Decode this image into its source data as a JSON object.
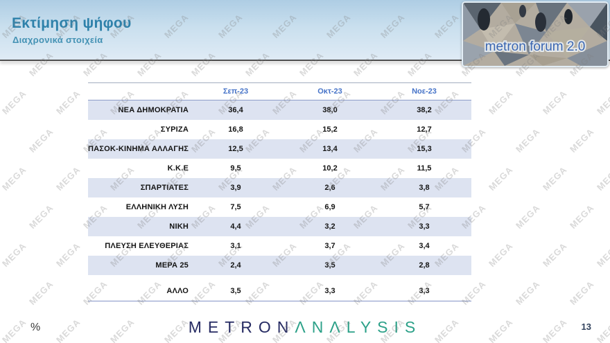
{
  "header": {
    "title": "Εκτίμηση ψήφου",
    "subtitle": "Διαχρονικά στοιχεία",
    "logo_text": "metron forum 2.0"
  },
  "watermark": {
    "text": "MEGA"
  },
  "table": {
    "columns": [
      "Σεπ-23",
      "Οκτ-23",
      "Νοε-23"
    ],
    "rows": [
      {
        "party": "ΝΕΑ ΔΗΜΟΚΡΑΤΙΑ",
        "values": [
          "36,4",
          "38,0",
          "38,2"
        ]
      },
      {
        "party": "ΣΥΡΙΖΑ",
        "values": [
          "16,8",
          "15,2",
          "12,7"
        ]
      },
      {
        "party": "ΠΑΣΟΚ-ΚΙΝΗΜΑ ΑΛΛΑΓΗΣ",
        "values": [
          "12,5",
          "13,4",
          "15,3"
        ]
      },
      {
        "party": "Κ.Κ.Ε",
        "values": [
          "9,5",
          "10,2",
          "11,5"
        ]
      },
      {
        "party": "ΣΠΑΡΤΙΑΤΕΣ",
        "values": [
          "3,9",
          "2,6",
          "3,8"
        ]
      },
      {
        "party": "ΕΛΛΗΝΙΚΗ ΛΥΣΗ",
        "values": [
          "7,5",
          "6,9",
          "5,7"
        ]
      },
      {
        "party": "ΝΙΚΗ",
        "values": [
          "4,4",
          "3,2",
          "3,3"
        ]
      },
      {
        "party": "ΠΛΕΥΣΗ ΕΛΕΥΘΕΡΙΑΣ",
        "values": [
          "3,1",
          "3,7",
          "3,4"
        ]
      },
      {
        "party": "ΜΕΡΑ 25",
        "values": [
          "2,4",
          "3,5",
          "2,8"
        ]
      },
      {
        "party": "ΑΛΛΟ",
        "values": [
          "3,5",
          "3,3",
          "3,3"
        ]
      }
    ]
  },
  "footer": {
    "logo_part1": "METRON",
    "logo_part2": "ΛNΛLYSIS",
    "unit_label": "%",
    "page_number": "13"
  },
  "colors": {
    "header_gradient_top": "#aecde4",
    "header_gradient_bottom": "#dfebf5",
    "title_blue": "#2e81aa",
    "column_header_blue": "#4673c8",
    "row_shade_lavender": "#dde3f1",
    "table_border_blue": "#8d9cc8",
    "metron_navy": "#262b63",
    "analysis_green": "#2da189",
    "forum_logo_text_blue": "#3b66b0"
  }
}
